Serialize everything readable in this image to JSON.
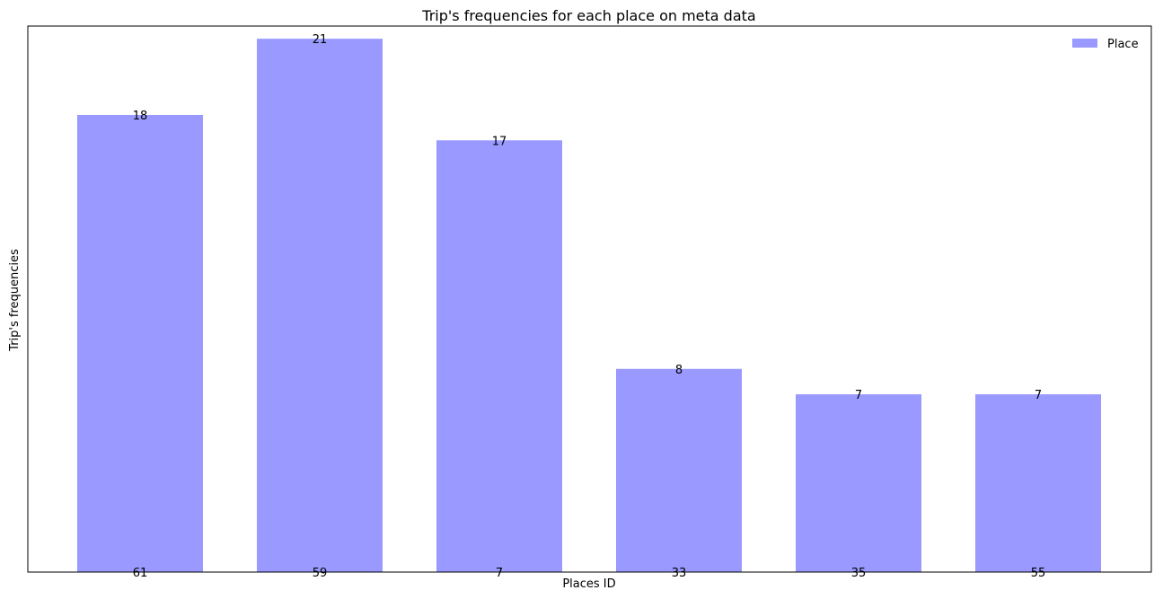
{
  "chart_data": {
    "type": "bar",
    "title": "Trip's frequencies for each place on meta data",
    "xlabel": "Places ID",
    "ylabel": "Trip's frequencies",
    "categories": [
      "61",
      "59",
      "7",
      "33",
      "35",
      "55"
    ],
    "series": [
      {
        "name": "Place",
        "values": [
          18,
          21,
          17,
          8,
          7,
          7
        ],
        "color": "#9999ff"
      }
    ],
    "data_labels": [
      "18",
      "21",
      "17",
      "8",
      "7",
      "7"
    ],
    "ylim": [
      0,
      21.5
    ],
    "y_ticks_visible": false,
    "grid": false,
    "legend_position": "top-right"
  }
}
